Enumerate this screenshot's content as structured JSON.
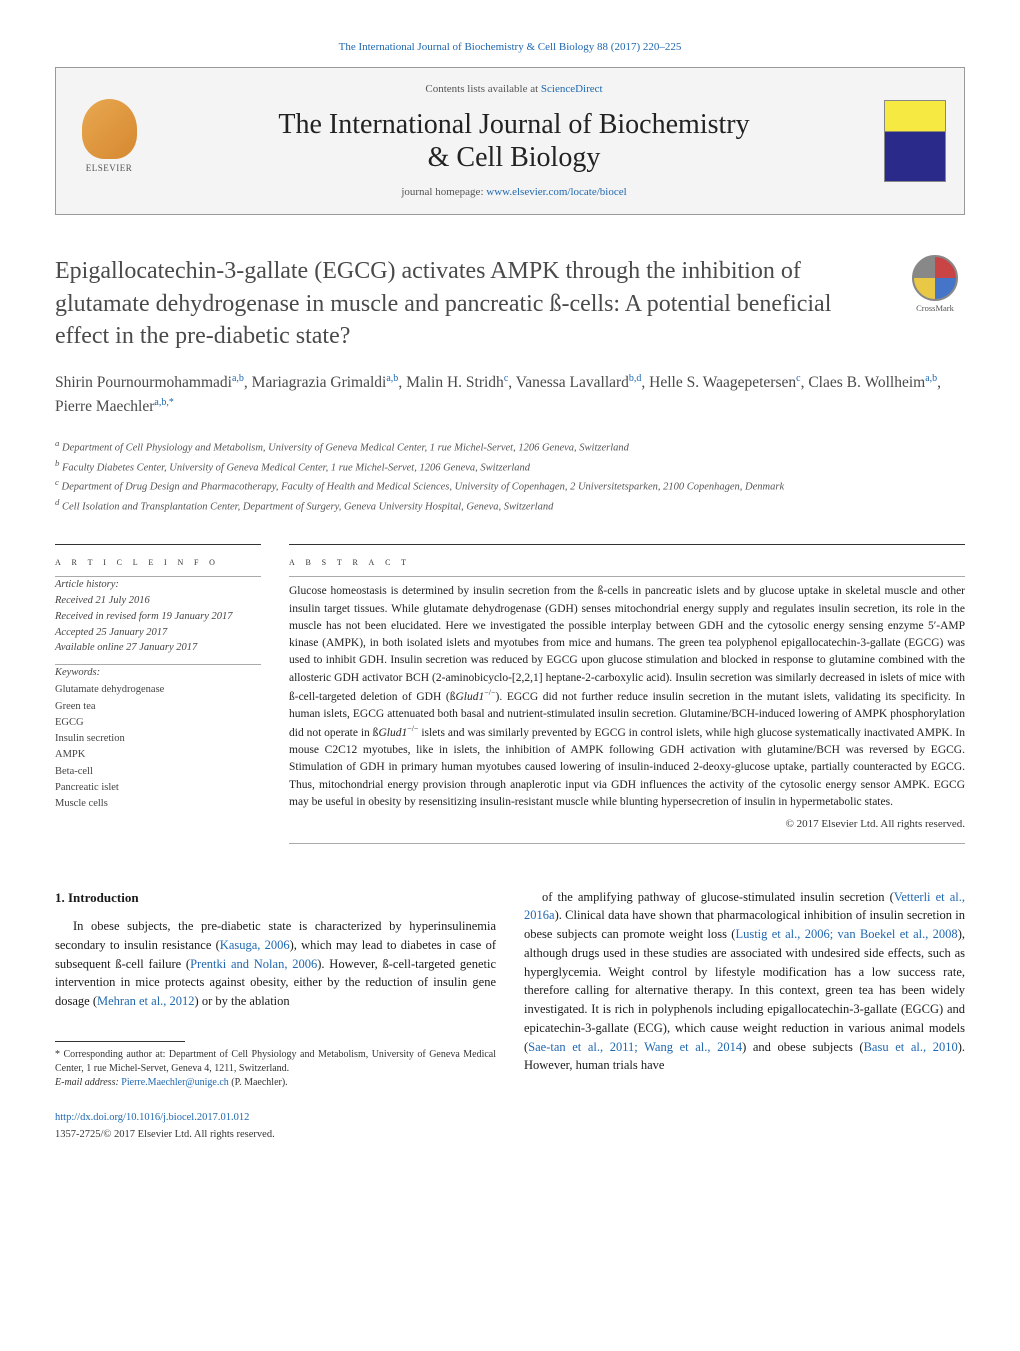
{
  "journal": {
    "top_citation": "The International Journal of Biochemistry & Cell Biology 88 (2017) 220–225",
    "contents_prefix": "Contents lists available at ",
    "contents_link": "ScienceDirect",
    "name_line1": "The International Journal of Biochemistry",
    "name_line2": "& Cell Biology",
    "homepage_prefix": "journal homepage: ",
    "homepage_url": "www.elsevier.com/locate/biocel",
    "publisher_logo_label": "ELSEVIER"
  },
  "crossmark": {
    "label": "CrossMark"
  },
  "title": "Epigallocatechin-3-gallate (EGCG) activates AMPK through the inhibition of glutamate dehydrogenase in muscle and pancreatic ß-cells: A potential beneficial effect in the pre-diabetic state?",
  "authors_html": "Shirin Pournourmohammadi|a,b|, Mariagrazia Grimaldi|a,b|, Malin H. Stridh|c|, Vanessa Lavallard|b,d|, Helle S. Waagepetersen|c|, Claes B. Wollheim|a,b|, Pierre Maechler|a,b,*|",
  "affiliations": [
    "a Department of Cell Physiology and Metabolism, University of Geneva Medical Center, 1 rue Michel-Servet, 1206 Geneva, Switzerland",
    "b Faculty Diabetes Center, University of Geneva Medical Center, 1 rue Michel-Servet, 1206 Geneva, Switzerland",
    "c Department of Drug Design and Pharmacotherapy, Faculty of Health and Medical Sciences, University of Copenhagen, 2 Universitetsparken, 2100 Copenhagen, Denmark",
    "d Cell Isolation and Transplantation Center, Department of Surgery, Geneva University Hospital, Geneva, Switzerland"
  ],
  "article_info": {
    "heading": "a r t i c l e   i n f o",
    "history_label": "Article history:",
    "history": [
      "Received 21 July 2016",
      "Received in revised form 19 January 2017",
      "Accepted 25 January 2017",
      "Available online 27 January 2017"
    ],
    "keywords_label": "Keywords:",
    "keywords": [
      "Glutamate dehydrogenase",
      "Green tea",
      "EGCG",
      "Insulin secretion",
      "AMPK",
      "Beta-cell",
      "Pancreatic islet",
      "Muscle cells"
    ]
  },
  "abstract": {
    "heading": "a b s t r a c t",
    "text": "Glucose homeostasis is determined by insulin secretion from the ß-cells in pancreatic islets and by glucose uptake in skeletal muscle and other insulin target tissues. While glutamate dehydrogenase (GDH) senses mitochondrial energy supply and regulates insulin secretion, its role in the muscle has not been elucidated. Here we investigated the possible interplay between GDH and the cytosolic energy sensing enzyme 5′-AMP kinase (AMPK), in both isolated islets and myotubes from mice and humans. The green tea polyphenol epigallocatechin-3-gallate (EGCG) was used to inhibit GDH. Insulin secretion was reduced by EGCG upon glucose stimulation and blocked in response to glutamine combined with the allosteric GDH activator BCH (2-aminobicyclo-[2,2,1] heptane-2-carboxylic acid). Insulin secretion was similarly decreased in islets of mice with ß-cell-targeted deletion of GDH (ßGlud1−/−). EGCG did not further reduce insulin secretion in the mutant islets, validating its specificity. In human islets, EGCG attenuated both basal and nutrient-stimulated insulin secretion. Glutamine/BCH-induced lowering of AMPK phosphorylation did not operate in ßGlud1−/− islets and was similarly prevented by EGCG in control islets, while high glucose systematically inactivated AMPK. In mouse C2C12 myotubes, like in islets, the inhibition of AMPK following GDH activation with glutamine/BCH was reversed by EGCG. Stimulation of GDH in primary human myotubes caused lowering of insulin-induced 2-deoxy-glucose uptake, partially counteracted by EGCG. Thus, mitochondrial energy provision through anaplerotic input via GDH influences the activity of the cytosolic energy sensor AMPK. EGCG may be useful in obesity by resensitizing insulin-resistant muscle while blunting hypersecretion of insulin in hypermetabolic states.",
    "copyright": "© 2017 Elsevier Ltd. All rights reserved."
  },
  "body": {
    "section_heading": "1. Introduction",
    "col1_para": "In obese subjects, the pre-diabetic state is characterized by hyperinsulinemia secondary to insulin resistance (|Kasuga, 2006|), which may lead to diabetes in case of subsequent ß-cell failure (|Prentki and Nolan, 2006|). However, ß-cell-targeted genetic intervention in mice protects against obesity, either by the reduction of insulin gene dosage (|Mehran et al., 2012|) or by the ablation",
    "col2_para": "of the amplifying pathway of glucose-stimulated insulin secretion (|Vetterli et al., 2016a|). Clinical data have shown that pharmacological inhibition of insulin secretion in obese subjects can promote weight loss (|Lustig et al., 2006; van Boekel et al., 2008|), although drugs used in these studies are associated with undesired side effects, such as hyperglycemia. Weight control by lifestyle modification has a low success rate, therefore calling for alternative therapy. In this context, green tea has been widely investigated. It is rich in polyphenols including epigallocatechin-3-gallate (EGCG) and epicatechin-3-gallate (ECG), which cause weight reduction in various animal models (|Sae-tan et al., 2011; Wang et al., 2014|) and obese subjects (|Basu et al., 2010|). However, human trials have"
  },
  "footnote": {
    "star": "* Corresponding author at: Department of Cell Physiology and Metabolism, University of Geneva Medical Center, 1 rue Michel-Servet, Geneva 4, 1211, Switzerland.",
    "email_label": "E-mail address: ",
    "email": "Pierre.Maechler@unige.ch",
    "email_suffix": " (P. Maechler)."
  },
  "doi": {
    "url": "http://dx.doi.org/10.1016/j.biocel.2017.01.012",
    "issn_line": "1357-2725/© 2017 Elsevier Ltd. All rights reserved."
  },
  "colors": {
    "link": "#2068b0",
    "text": "#1a1a1a",
    "muted": "#555555",
    "rule": "#333333",
    "box_bg": "#f4f4f4"
  }
}
